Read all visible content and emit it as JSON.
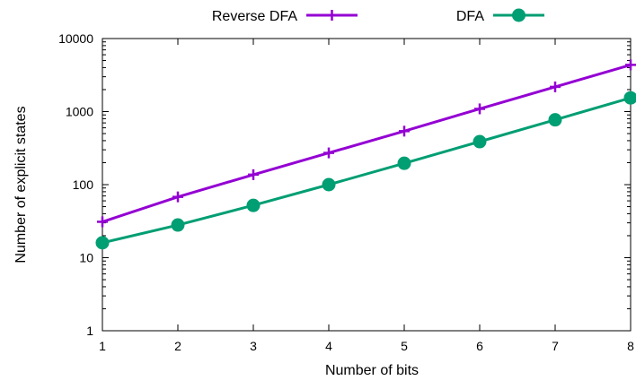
{
  "chart_data": {
    "type": "line",
    "xlabel": "Number of bits",
    "ylabel": "Number of explicit states",
    "x": [
      1,
      2,
      3,
      4,
      5,
      6,
      7,
      8
    ],
    "xlim": [
      1,
      8
    ],
    "ylim": [
      1,
      10000
    ],
    "yscale": "log",
    "yticks": [
      1,
      10,
      100,
      1000,
      10000
    ],
    "ytick_labels": [
      "1",
      "10",
      "100",
      "1000",
      "10000"
    ],
    "xtick_labels": [
      "1",
      "2",
      "3",
      "4",
      "5",
      "6",
      "7",
      "8"
    ],
    "grid": false,
    "legend_position": "top",
    "series": [
      {
        "name": "Reverse DFA",
        "color": "#9400d3",
        "marker": "plus",
        "values": [
          31,
          68,
          137,
          272,
          540,
          1090,
          2180,
          4360
        ]
      },
      {
        "name": "DFA",
        "color": "#009e73",
        "marker": "circle",
        "values": [
          16,
          28,
          52,
          100,
          196,
          388,
          772,
          1540
        ]
      }
    ]
  }
}
